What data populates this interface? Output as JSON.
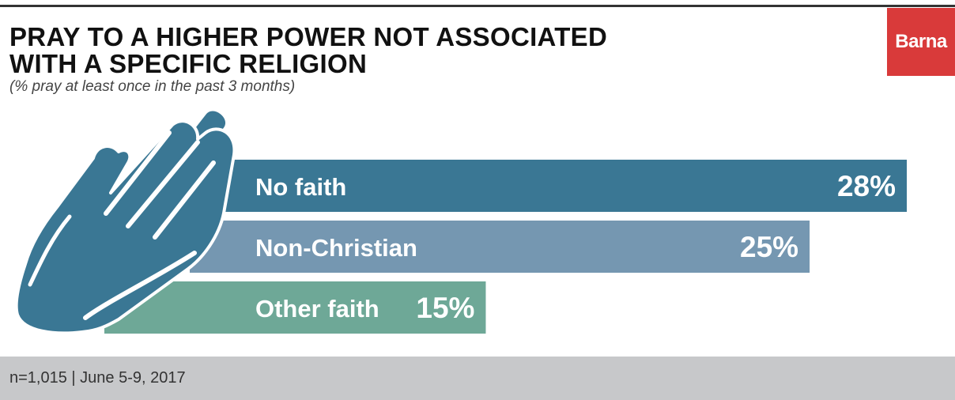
{
  "header": {
    "title_line1": "PRAY TO A HIGHER POWER NOT ASSOCIATED",
    "title_line2": "WITH A SPECIFIC RELIGION",
    "subtitle": "(% pray at least once in the past 3 months)",
    "logo": "Barna"
  },
  "footer": {
    "note": "n=1,015 | June 5-9, 2017"
  },
  "colors": {
    "no_faith": "#3a7794",
    "non_christian": "#7597b1",
    "other_faith": "#6ea897",
    "logo": "#d93a3a",
    "hands": "#3a7794"
  },
  "icons": [
    "praying-hands-icon"
  ],
  "chart_data": {
    "type": "bar",
    "orientation": "horizontal",
    "title": "PRAY TO A HIGHER POWER NOT ASSOCIATED WITH A SPECIFIC RELIGION",
    "subtitle": "(% pray at least once in the past 3 months)",
    "categories": [
      "No faith",
      "Non-Christian",
      "Other faith"
    ],
    "values": [
      28,
      25,
      15
    ],
    "value_labels": [
      "28%",
      "25%",
      "15%"
    ],
    "unit": "%",
    "xlim": [
      0,
      28
    ],
    "grid": false,
    "legend": "none"
  }
}
